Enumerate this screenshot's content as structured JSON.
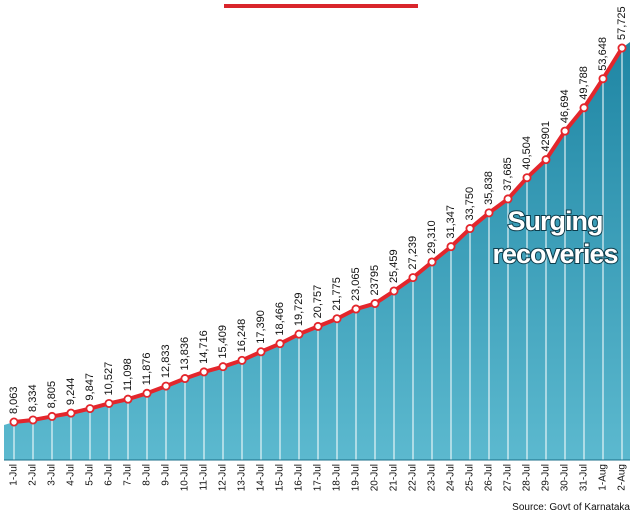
{
  "chart_data": {
    "type": "line",
    "annotation": [
      "Surging",
      "recoveries"
    ],
    "source": "Source: Govt of Karnataka",
    "categories": [
      "1-Jul",
      "2-Jul",
      "3-Jul",
      "4-Jul",
      "5-Jul",
      "6-Jul",
      "7-Jul",
      "8-Jul",
      "9-Jul",
      "10-Jul",
      "11-Jul",
      "12-Jul",
      "13-Jul",
      "14-Jul",
      "15-Jul",
      "16-Jul",
      "17-Jul",
      "18-Jul",
      "19-Jul",
      "20-Jul",
      "21-Jul",
      "22-Jul",
      "23-Jul",
      "24-Jul",
      "25-Jul",
      "26-Jul",
      "27-Jul",
      "28-Jul",
      "29-Jul",
      "30-Jul",
      "31-Jul",
      "1-Aug",
      "2-Aug"
    ],
    "values": [
      8063,
      8334,
      8805,
      9244,
      9847,
      10527,
      11098,
      11876,
      12833,
      13836,
      14716,
      15409,
      16248,
      17390,
      18466,
      19729,
      20757,
      21775,
      23065,
      23795,
      25459,
      27239,
      29310,
      31347,
      33750,
      35838,
      37685,
      40504,
      42901,
      46694,
      49788,
      53648,
      57725
    ],
    "value_labels": [
      "8,063",
      "8,334",
      "8,805",
      "9,244",
      "9,847",
      "10,527",
      "11,098",
      "11,876",
      "12,833",
      "13,836",
      "14,716",
      "15,409",
      "16,248",
      "17,390",
      "18,466",
      "19,729",
      "20,757",
      "21,775",
      "23,065",
      "23795",
      "25,459",
      "27,239",
      "29,310",
      "31,347",
      "33,750",
      "35,838",
      "37,685",
      "40,504",
      "42901",
      "46,694",
      "49,788",
      "53,648",
      "57,725"
    ],
    "color": "#e3262c",
    "fill_color": "#2f97b3"
  }
}
